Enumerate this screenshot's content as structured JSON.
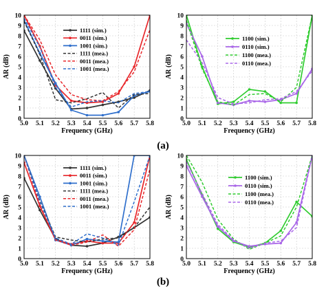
{
  "figure": {
    "captions": [
      "(a)",
      "(b)"
    ]
  },
  "colors": {
    "black": "#333333",
    "red": "#e8262a",
    "blue": "#2f6fcc",
    "green": "#2fcc2f",
    "purple": "#a966e8"
  },
  "chart_data": [
    {
      "id": "a-left",
      "type": "line",
      "xlabel": "Frequency (GHz)",
      "ylabel": "AR (dB)",
      "xlim": [
        5.0,
        5.8
      ],
      "ylim": [
        0,
        10
      ],
      "xticks": [
        "5.0",
        "5.1",
        "5.2",
        "5.3",
        "5.4",
        "5.5",
        "5.6",
        "5.7",
        "5.8"
      ],
      "yticks": [
        "0",
        "1",
        "2",
        "3",
        "4",
        "5",
        "6",
        "7",
        "8",
        "9",
        "10"
      ],
      "grid": true,
      "legend_position": "top-center",
      "x": [
        5.0,
        5.1,
        5.2,
        5.3,
        5.4,
        5.5,
        5.6,
        5.7,
        5.8
      ],
      "series": [
        {
          "name": "1111 (sim.)",
          "color": "black",
          "dash": false,
          "marker": "circle",
          "values": [
            8.5,
            5.6,
            2.9,
            0.9,
            1.0,
            1.3,
            1.6,
            2.0,
            2.7
          ]
        },
        {
          "name": "0011 (sim.)",
          "color": "red",
          "dash": false,
          "marker": "circle",
          "values": [
            10.0,
            7.0,
            3.2,
            1.7,
            1.5,
            1.6,
            2.4,
            5.0,
            10.0
          ]
        },
        {
          "name": "1001 (sim.)",
          "color": "blue",
          "dash": false,
          "marker": "circle",
          "values": [
            9.5,
            6.3,
            3.4,
            0.8,
            0.3,
            0.3,
            0.6,
            2.2,
            2.6
          ]
        },
        {
          "name": "1111 (mea.)",
          "color": "black",
          "dash": true,
          "marker": "none",
          "values": [
            9.4,
            6.2,
            1.8,
            1.5,
            1.9,
            2.5,
            1.0,
            2.3,
            2.4
          ]
        },
        {
          "name": "0011 (mea.)",
          "color": "red",
          "dash": true,
          "marker": "none",
          "values": [
            10.0,
            7.6,
            4.2,
            2.3,
            1.8,
            1.7,
            2.6,
            4.5,
            8.6
          ]
        },
        {
          "name": "1001 (mea.)",
          "color": "blue",
          "dash": true,
          "marker": "none",
          "values": [
            9.7,
            6.9,
            3.0,
            1.1,
            1.6,
            1.7,
            1.5,
            2.4,
            2.6
          ]
        }
      ]
    },
    {
      "id": "a-right",
      "type": "line",
      "xlabel": "Frequency (GHz)",
      "ylabel": "AR (dB)",
      "xlim": [
        5.0,
        5.8
      ],
      "ylim": [
        0,
        10
      ],
      "xticks": [
        "5.0",
        "5.1",
        "5.2",
        "5.3",
        "5.4",
        "5.5",
        "5.6",
        "5.7",
        "5.8"
      ],
      "yticks": [
        "0",
        "1",
        "2",
        "3",
        "4",
        "5",
        "6",
        "7",
        "8",
        "9",
        "10"
      ],
      "grid": true,
      "legend_position": "top-center",
      "x": [
        5.0,
        5.1,
        5.2,
        5.3,
        5.4,
        5.5,
        5.6,
        5.7,
        5.8
      ],
      "series": [
        {
          "name": "1100 (sim.)",
          "color": "green",
          "dash": false,
          "marker": "circle",
          "values": [
            10.0,
            5.0,
            1.4,
            1.6,
            2.8,
            2.6,
            1.5,
            1.5,
            10.0
          ]
        },
        {
          "name": "0110 (sim.)",
          "color": "purple",
          "dash": false,
          "marker": "circle",
          "values": [
            9.2,
            6.0,
            1.5,
            1.3,
            1.7,
            1.6,
            1.8,
            2.4,
            4.8
          ]
        },
        {
          "name": "1100 (mea.)",
          "color": "green",
          "dash": true,
          "marker": "none",
          "values": [
            9.5,
            4.8,
            1.6,
            1.3,
            2.3,
            2.4,
            1.6,
            3.0,
            10.0
          ]
        },
        {
          "name": "0110 (mea.)",
          "color": "purple",
          "dash": true,
          "marker": "none",
          "values": [
            7.6,
            5.4,
            2.0,
            1.4,
            1.5,
            1.8,
            1.9,
            2.6,
            4.6
          ]
        }
      ]
    },
    {
      "id": "b-left",
      "type": "line",
      "xlabel": "Frequency (GHz)",
      "ylabel": "AR (dB)",
      "xlim": [
        5.0,
        5.8
      ],
      "ylim": [
        0,
        10
      ],
      "xticks": [
        "5.0",
        "5.1",
        "5.2",
        "5.3",
        "5.4",
        "5.5",
        "5.6",
        "5.7",
        "5.8"
      ],
      "yticks": [
        "0",
        "1",
        "2",
        "3",
        "4",
        "5",
        "6",
        "7",
        "8",
        "9",
        "10"
      ],
      "grid": true,
      "legend_position": "top-center",
      "x": [
        5.0,
        5.1,
        5.2,
        5.3,
        5.4,
        5.5,
        5.6,
        5.7,
        5.8
      ],
      "series": [
        {
          "name": "1111 (sim.)",
          "color": "black",
          "dash": false,
          "marker": "circle",
          "values": [
            7.8,
            4.7,
            1.9,
            1.3,
            1.2,
            1.5,
            2.1,
            3.0,
            4.0
          ]
        },
        {
          "name": "0011 (sim.)",
          "color": "red",
          "dash": false,
          "marker": "circle",
          "values": [
            9.3,
            5.1,
            1.8,
            1.4,
            1.7,
            1.5,
            1.5,
            3.5,
            10.0
          ]
        },
        {
          "name": "1001 (sim.)",
          "color": "blue",
          "dash": false,
          "marker": "circle",
          "values": [
            10.0,
            6.0,
            1.8,
            1.3,
            1.9,
            1.7,
            1.6,
            10.0,
            10.0
          ]
        },
        {
          "name": "1111 (mea.)",
          "color": "black",
          "dash": true,
          "marker": "none",
          "values": [
            10.0,
            5.6,
            2.1,
            1.8,
            1.6,
            1.9,
            2.0,
            3.0,
            5.0
          ]
        },
        {
          "name": "0011 (mea.)",
          "color": "red",
          "dash": true,
          "marker": "none",
          "values": [
            10.0,
            5.2,
            1.8,
            1.3,
            1.6,
            2.3,
            1.2,
            2.8,
            8.7
          ]
        },
        {
          "name": "1001 (mea.)",
          "color": "blue",
          "dash": true,
          "marker": "none",
          "values": [
            10.0,
            5.5,
            2.0,
            1.4,
            2.4,
            2.0,
            1.3,
            5.5,
            10.0
          ]
        }
      ]
    },
    {
      "id": "b-right",
      "type": "line",
      "xlabel": "Frequency (GHz)",
      "ylabel": "AR (dB)",
      "xlim": [
        5.0,
        5.8
      ],
      "ylim": [
        0,
        10
      ],
      "xticks": [
        "5.0",
        "5.1",
        "5.2",
        "5.3",
        "5.4",
        "5.5",
        "5.6",
        "5.7",
        "5.8"
      ],
      "yticks": [
        "0",
        "1",
        "2",
        "3",
        "4",
        "5",
        "6",
        "7",
        "8",
        "9",
        "10"
      ],
      "grid": true,
      "legend_position": "top-right",
      "x": [
        5.0,
        5.1,
        5.2,
        5.3,
        5.4,
        5.5,
        5.6,
        5.7,
        5.8
      ],
      "series": [
        {
          "name": "1100 (sim.)",
          "color": "green",
          "dash": false,
          "marker": "circle",
          "values": [
            9.6,
            6.2,
            2.9,
            1.6,
            1.1,
            1.5,
            2.7,
            5.5,
            4.1
          ]
        },
        {
          "name": "0110 (sim.)",
          "color": "purple",
          "dash": false,
          "marker": "circle",
          "values": [
            9.0,
            6.0,
            3.1,
            1.7,
            1.2,
            1.4,
            1.5,
            3.5,
            10.0
          ]
        },
        {
          "name": "1100 (mea.)",
          "color": "green",
          "dash": true,
          "marker": "none",
          "values": [
            10.0,
            7.4,
            3.8,
            1.9,
            0.9,
            1.5,
            2.2,
            5.0,
            10.0
          ]
        },
        {
          "name": "0110 (mea.)",
          "color": "purple",
          "dash": true,
          "marker": "none",
          "values": [
            9.4,
            6.3,
            3.3,
            1.8,
            1.0,
            1.5,
            1.7,
            3.0,
            10.0
          ]
        }
      ]
    }
  ]
}
